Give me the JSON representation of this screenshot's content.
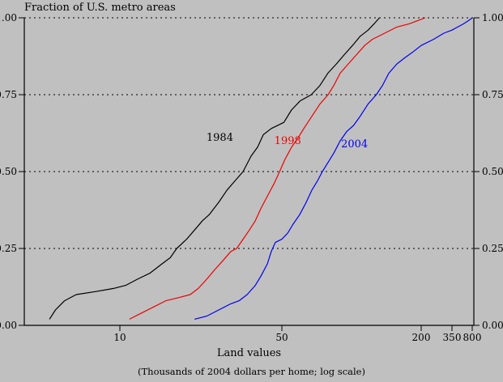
{
  "figure": {
    "background_color": "#c0c0c0",
    "axis_color": "#000000"
  },
  "chart_data": {
    "type": "line",
    "subtype": "empirical-cdf",
    "title": "Fraction of U.S. metro areas",
    "xlabel": "Land values",
    "x_note": "(Thousands of 2004 dollars per home; log scale)",
    "x_scale": "log",
    "xlim": [
      3.9,
      900
    ],
    "ylim": [
      0,
      1
    ],
    "grid": "horizontal-dashed",
    "legend": "inline-labels",
    "y_axis_sides": [
      "left",
      "right"
    ],
    "x_ticks": [
      {
        "value": 10,
        "label": "10"
      },
      {
        "value": 50,
        "label": "50"
      },
      {
        "value": 200,
        "label": "200"
      },
      {
        "value": 350,
        "label": "350"
      },
      {
        "value": 800,
        "label": "800"
      }
    ],
    "y_ticks": [
      {
        "value": 0,
        "label": "0.00"
      },
      {
        "value": 0.25,
        "label": "0.25"
      },
      {
        "value": 0.5,
        "label": "0.50"
      },
      {
        "value": 0.75,
        "label": "0.75"
      },
      {
        "value": 1,
        "label": "1.00"
      }
    ],
    "series": [
      {
        "name": "1984",
        "color": "#000000",
        "label": {
          "text": "1984",
          "x": 27,
          "y": 0.61
        },
        "points": [
          [
            5,
            0.02
          ],
          [
            5.3,
            0.05
          ],
          [
            5.8,
            0.08
          ],
          [
            6.5,
            0.1
          ],
          [
            7.9,
            0.11
          ],
          [
            9.4,
            0.12
          ],
          [
            10.6,
            0.13
          ],
          [
            11.9,
            0.15
          ],
          [
            13.5,
            0.17
          ],
          [
            15.2,
            0.2
          ],
          [
            16.5,
            0.22
          ],
          [
            17.6,
            0.25
          ],
          [
            19.4,
            0.28
          ],
          [
            21,
            0.31
          ],
          [
            22.7,
            0.34
          ],
          [
            24.3,
            0.36
          ],
          [
            26.7,
            0.4
          ],
          [
            29,
            0.44
          ],
          [
            31.4,
            0.47
          ],
          [
            34,
            0.5
          ],
          [
            36.8,
            0.55
          ],
          [
            39.3,
            0.58
          ],
          [
            41.6,
            0.62
          ],
          [
            45,
            0.64
          ],
          [
            51,
            0.66
          ],
          [
            55,
            0.7
          ],
          [
            60,
            0.73
          ],
          [
            67,
            0.75
          ],
          [
            73,
            0.78
          ],
          [
            79,
            0.82
          ],
          [
            86,
            0.85
          ],
          [
            93,
            0.88
          ],
          [
            101,
            0.91
          ],
          [
            109,
            0.94
          ],
          [
            118,
            0.96
          ],
          [
            125,
            0.98
          ],
          [
            132,
            1.0
          ]
        ]
      },
      {
        "name": "1998",
        "color": "#ee0000",
        "label": {
          "text": "1998",
          "x": 53,
          "y": 0.6
        },
        "points": [
          [
            11,
            0.02
          ],
          [
            12.4,
            0.04
          ],
          [
            14,
            0.06
          ],
          [
            15.8,
            0.08
          ],
          [
            17.9,
            0.09
          ],
          [
            20.1,
            0.1
          ],
          [
            21.8,
            0.12
          ],
          [
            23.7,
            0.15
          ],
          [
            25.6,
            0.18
          ],
          [
            27.8,
            0.21
          ],
          [
            30.1,
            0.24
          ],
          [
            31.9,
            0.25
          ],
          [
            34,
            0.28
          ],
          [
            36.2,
            0.31
          ],
          [
            38.4,
            0.34
          ],
          [
            40.6,
            0.38
          ],
          [
            43.3,
            0.42
          ],
          [
            46.2,
            0.46
          ],
          [
            48.9,
            0.5
          ],
          [
            51.6,
            0.54
          ],
          [
            55.1,
            0.58
          ],
          [
            58.8,
            0.61
          ],
          [
            62.2,
            0.64
          ],
          [
            67.4,
            0.68
          ],
          [
            73.1,
            0.72
          ],
          [
            79.2,
            0.75
          ],
          [
            83.8,
            0.78
          ],
          [
            89.3,
            0.82
          ],
          [
            96.8,
            0.85
          ],
          [
            105,
            0.88
          ],
          [
            114,
            0.91
          ],
          [
            123,
            0.93
          ],
          [
            139,
            0.95
          ],
          [
            157,
            0.97
          ],
          [
            177,
            0.98
          ],
          [
            192,
            0.99
          ],
          [
            215,
            1.0
          ]
        ]
      },
      {
        "name": "2004",
        "color": "#0000ee",
        "label": {
          "text": "2004",
          "x": 103,
          "y": 0.59
        },
        "points": [
          [
            21,
            0.02
          ],
          [
            23.7,
            0.03
          ],
          [
            26.7,
            0.05
          ],
          [
            30.1,
            0.07
          ],
          [
            32.7,
            0.08
          ],
          [
            35.4,
            0.1
          ],
          [
            38.4,
            0.13
          ],
          [
            40.6,
            0.16
          ],
          [
            43.3,
            0.2
          ],
          [
            45,
            0.24
          ],
          [
            46.9,
            0.27
          ],
          [
            50,
            0.28
          ],
          [
            53,
            0.3
          ],
          [
            56,
            0.33
          ],
          [
            59.7,
            0.36
          ],
          [
            63.7,
            0.4
          ],
          [
            67.4,
            0.44
          ],
          [
            71.3,
            0.47
          ],
          [
            74.8,
            0.5
          ],
          [
            79.2,
            0.53
          ],
          [
            83.8,
            0.56
          ],
          [
            89.3,
            0.6
          ],
          [
            95.3,
            0.63
          ],
          [
            102,
            0.65
          ],
          [
            109,
            0.68
          ],
          [
            118,
            0.72
          ],
          [
            128,
            0.75
          ],
          [
            136,
            0.78
          ],
          [
            145,
            0.82
          ],
          [
            157,
            0.85
          ],
          [
            170,
            0.87
          ],
          [
            185,
            0.89
          ],
          [
            200,
            0.91
          ],
          [
            250,
            0.93
          ],
          [
            302,
            0.95
          ],
          [
            350,
            0.96
          ],
          [
            441,
            0.97
          ],
          [
            556,
            0.98
          ],
          [
            678,
            0.99
          ],
          [
            800,
            1.0
          ]
        ]
      }
    ]
  }
}
